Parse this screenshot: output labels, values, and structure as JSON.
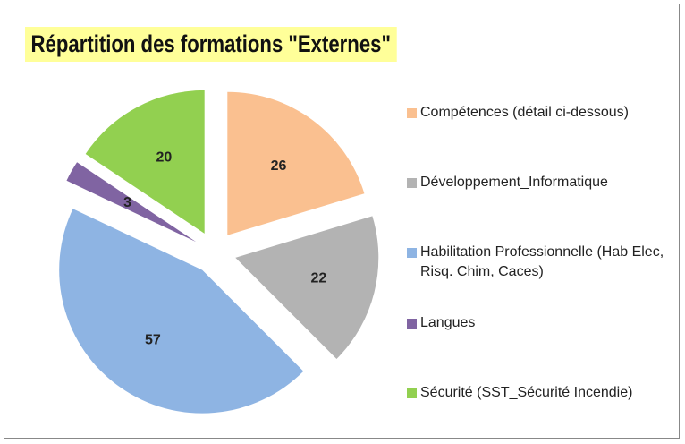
{
  "chart_data": {
    "type": "pie",
    "title": "Répartition des formations \"Externes\"",
    "categories": [
      "Compétences (détail ci-dessous)",
      "Développement_Informatique",
      "Habilitation Professionnelle (Hab Elec, Risq. Chim, Caces)",
      "Langues",
      "Sécurité (SST_Sécurité Incendie)"
    ],
    "values": [
      26,
      22,
      57,
      3,
      20
    ],
    "colors": [
      "#fac090",
      "#b3b3b3",
      "#8eb4e3",
      "#8064a2",
      "#92d050"
    ],
    "exploded": true,
    "legend": "right"
  }
}
